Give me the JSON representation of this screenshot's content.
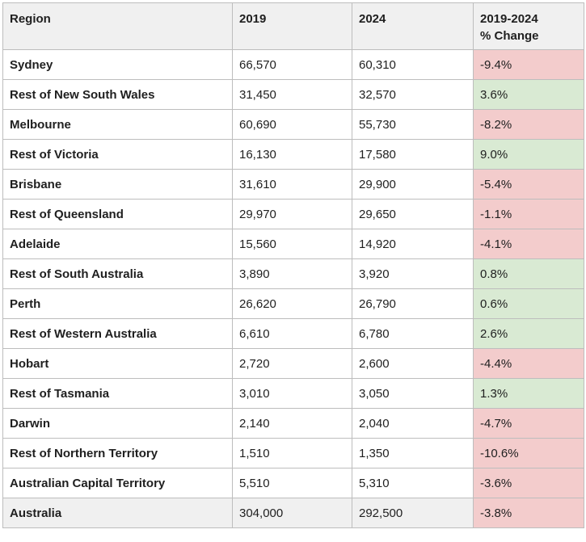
{
  "table": {
    "headers": {
      "region": "Region",
      "y2019": "2019",
      "y2024": "2024",
      "change_line1": "2019-2024",
      "change_line2": "% Change"
    },
    "colors": {
      "negative": "#f3cccc",
      "positive": "#d9ead3",
      "header_bg": "#f0f0f0"
    },
    "rows": [
      {
        "region": "Sydney",
        "y2019": "66,570",
        "y2024": "60,310",
        "change": "-9.4%"
      },
      {
        "region": "Rest of New South Wales",
        "y2019": "31,450",
        "y2024": "32,570",
        "change": "3.6%"
      },
      {
        "region": "Melbourne",
        "y2019": "60,690",
        "y2024": "55,730",
        "change": "-8.2%"
      },
      {
        "region": "Rest of Victoria",
        "y2019": "16,130",
        "y2024": "17,580",
        "change": "9.0%"
      },
      {
        "region": "Brisbane",
        "y2019": "31,610",
        "y2024": "29,900",
        "change": "-5.4%"
      },
      {
        "region": "Rest of Queensland",
        "y2019": "29,970",
        "y2024": "29,650",
        "change": "-1.1%"
      },
      {
        "region": "Adelaide",
        "y2019": "15,560",
        "y2024": "14,920",
        "change": "-4.1%"
      },
      {
        "region": "Rest of South Australia",
        "y2019": "3,890",
        "y2024": "3,920",
        "change": "0.8%"
      },
      {
        "region": "Perth",
        "y2019": "26,620",
        "y2024": "26,790",
        "change": "0.6%"
      },
      {
        "region": "Rest of Western Australia",
        "y2019": "6,610",
        "y2024": "6,780",
        "change": "2.6%"
      },
      {
        "region": "Hobart",
        "y2019": "2,720",
        "y2024": "2,600",
        "change": "-4.4%"
      },
      {
        "region": "Rest of Tasmania",
        "y2019": "3,010",
        "y2024": "3,050",
        "change": "1.3%"
      },
      {
        "region": "Darwin",
        "y2019": "2,140",
        "y2024": "2,040",
        "change": "-4.7%"
      },
      {
        "region": "Rest of Northern Territory",
        "y2019": "1,510",
        "y2024": "1,350",
        "change": "-10.6%"
      },
      {
        "region": "Australian Capital Territory",
        "y2019": "5,510",
        "y2024": "5,310",
        "change": "-3.6%"
      }
    ],
    "total": {
      "region": "Australia",
      "y2019": "304,000",
      "y2024": "292,500",
      "change": "-3.8%"
    }
  }
}
